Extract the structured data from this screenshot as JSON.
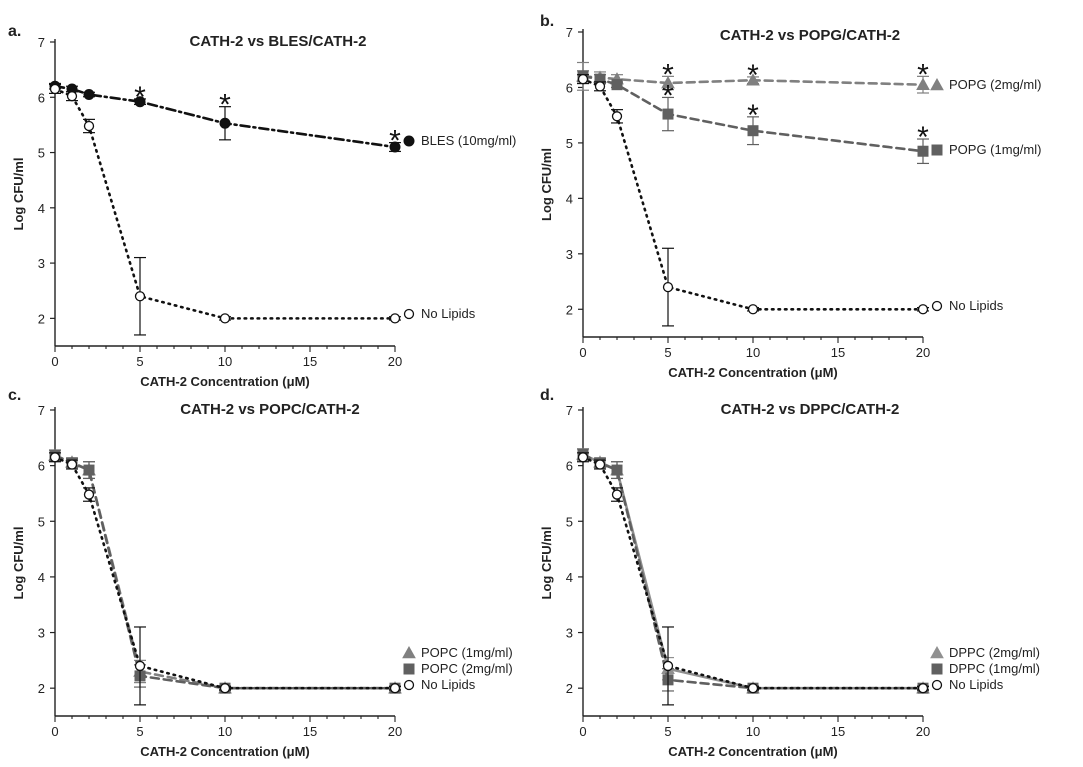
{
  "colors": {
    "black": "#111111",
    "gray": "#808080",
    "dark_gray": "#606060"
  },
  "chart_data": [
    {
      "panel": "a.",
      "type": "line",
      "title": "CATH-2 vs BLES/CATH-2",
      "xlabel": "CATH-2 Concentration (μM)",
      "ylabel": "Log CFU/ml",
      "xlim": [
        0,
        21
      ],
      "ylim": [
        1.5,
        7
      ],
      "xticks": [
        0,
        5,
        10,
        15,
        20
      ],
      "yticks": [
        2,
        3,
        4,
        5,
        6,
        7
      ],
      "series": [
        {
          "name": "BLES (10mg/ml)",
          "marker": "filled-circle",
          "line": "dashdot",
          "color": "#111111",
          "x": [
            0,
            1,
            2,
            5,
            10,
            20
          ],
          "y": [
            6.2,
            6.15,
            6.05,
            5.92,
            5.53,
            5.1
          ],
          "err": [
            0.05,
            0.05,
            0.04,
            0.05,
            0.3,
            0.08
          ]
        },
        {
          "name": "No Lipids",
          "marker": "open-circle",
          "line": "dotted",
          "color": "#111111",
          "x": [
            0,
            1,
            2,
            5,
            10,
            20
          ],
          "y": [
            6.15,
            6.02,
            5.48,
            2.4,
            2.0,
            2.0
          ],
          "err": [
            0.08,
            0.08,
            0.12,
            0.7,
            0.03,
            0.03
          ]
        }
      ],
      "stars_x": [
        5,
        10,
        20
      ],
      "star_text": "*"
    },
    {
      "panel": "b.",
      "type": "line",
      "title": "CATH-2 vs POPG/CATH-2",
      "xlabel": "CATH-2 Concentration (μM)",
      "ylabel": "Log CFU/ml",
      "xlim": [
        0,
        21
      ],
      "ylim": [
        1.5,
        7
      ],
      "xticks": [
        0,
        5,
        10,
        15,
        20
      ],
      "yticks": [
        2,
        3,
        4,
        5,
        6,
        7
      ],
      "series": [
        {
          "name": "POPG (2mg/ml)",
          "marker": "triangle",
          "line": "dashed",
          "color": "#808080",
          "x": [
            0,
            1,
            2,
            5,
            10,
            20
          ],
          "y": [
            6.2,
            6.18,
            6.15,
            6.08,
            6.13,
            6.05
          ],
          "err": [
            0.25,
            0.1,
            0.08,
            0.12,
            0.06,
            0.15
          ]
        },
        {
          "name": "POPG (1mg/ml)",
          "marker": "square",
          "line": "dashed",
          "color": "#606060",
          "x": [
            0,
            1,
            2,
            5,
            10,
            20
          ],
          "y": [
            6.2,
            6.15,
            6.05,
            5.52,
            5.22,
            4.85
          ],
          "err": [
            0.1,
            0.08,
            0.05,
            0.3,
            0.25,
            0.22
          ]
        },
        {
          "name": "No Lipids",
          "marker": "open-circle",
          "line": "dotted",
          "color": "#111111",
          "x": [
            0,
            1,
            2,
            5,
            10,
            20
          ],
          "y": [
            6.15,
            6.02,
            5.48,
            2.4,
            2.0,
            2.0
          ],
          "err": [
            0.08,
            0.08,
            0.12,
            0.7,
            0.03,
            0.03
          ]
        }
      ],
      "stars_x": [
        5,
        10,
        20
      ],
      "star_text": "*"
    },
    {
      "panel": "c.",
      "type": "line",
      "title": "CATH-2 vs POPC/CATH-2",
      "xlabel": "CATH-2 Concentration (μM)",
      "ylabel": "Log CFU/ml",
      "xlim": [
        0,
        21
      ],
      "ylim": [
        1.5,
        7
      ],
      "xticks": [
        0,
        5,
        10,
        15,
        20
      ],
      "yticks": [
        2,
        3,
        4,
        5,
        6,
        7
      ],
      "series": [
        {
          "name": "POPC (1mg/ml)",
          "marker": "triangle",
          "line": "dashed",
          "color": "#808080",
          "x": [
            0,
            1,
            2,
            5,
            10,
            20
          ],
          "y": [
            6.18,
            6.06,
            5.92,
            2.3,
            2.0,
            2.0
          ],
          "err": [
            0.1,
            0.08,
            0.15,
            0.2,
            0.04,
            0.04
          ]
        },
        {
          "name": "POPC (2mg/ml)",
          "marker": "square",
          "line": "dashed",
          "color": "#606060",
          "x": [
            0,
            1,
            2,
            5,
            10,
            20
          ],
          "y": [
            6.18,
            6.05,
            5.92,
            2.22,
            2.0,
            2.0
          ],
          "err": [
            0.1,
            0.08,
            0.15,
            0.2,
            0.04,
            0.04
          ]
        },
        {
          "name": "No Lipids",
          "marker": "open-circle",
          "line": "dotted",
          "color": "#111111",
          "x": [
            0,
            1,
            2,
            5,
            10,
            20
          ],
          "y": [
            6.15,
            6.02,
            5.48,
            2.4,
            2.0,
            2.0
          ],
          "err": [
            0.08,
            0.08,
            0.12,
            0.7,
            0.03,
            0.03
          ]
        }
      ],
      "stars_x": [],
      "star_text": ""
    },
    {
      "panel": "d.",
      "type": "line",
      "title": "CATH-2 vs DPPC/CATH-2",
      "xlabel": "CATH-2 Concentration (μM)",
      "ylabel": "Log CFU/ml",
      "xlim": [
        0,
        21
      ],
      "ylim": [
        1.5,
        7
      ],
      "xticks": [
        0,
        5,
        10,
        15,
        20
      ],
      "yticks": [
        2,
        3,
        4,
        5,
        6,
        7
      ],
      "series": [
        {
          "name": "DPPC (2mg/ml)",
          "marker": "triangle",
          "line": "solid",
          "color": "#909090",
          "x": [
            0,
            1,
            2,
            5,
            10,
            20
          ],
          "y": [
            6.2,
            6.06,
            5.92,
            2.35,
            2.0,
            2.0
          ],
          "err": [
            0.1,
            0.08,
            0.15,
            0.2,
            0.04,
            0.04
          ]
        },
        {
          "name": "DPPC (1mg/ml)",
          "marker": "square",
          "line": "dashed",
          "color": "#606060",
          "x": [
            0,
            1,
            2,
            5,
            10,
            20
          ],
          "y": [
            6.2,
            6.05,
            5.92,
            2.15,
            2.0,
            2.0
          ],
          "err": [
            0.1,
            0.08,
            0.15,
            0.2,
            0.04,
            0.04
          ]
        },
        {
          "name": "No Lipids",
          "marker": "open-circle",
          "line": "dotted",
          "color": "#111111",
          "x": [
            0,
            1,
            2,
            5,
            10,
            20
          ],
          "y": [
            6.15,
            6.02,
            5.48,
            2.4,
            2.0,
            2.0
          ],
          "err": [
            0.08,
            0.08,
            0.12,
            0.7,
            0.03,
            0.03
          ]
        }
      ],
      "stars_x": [],
      "star_text": ""
    }
  ]
}
